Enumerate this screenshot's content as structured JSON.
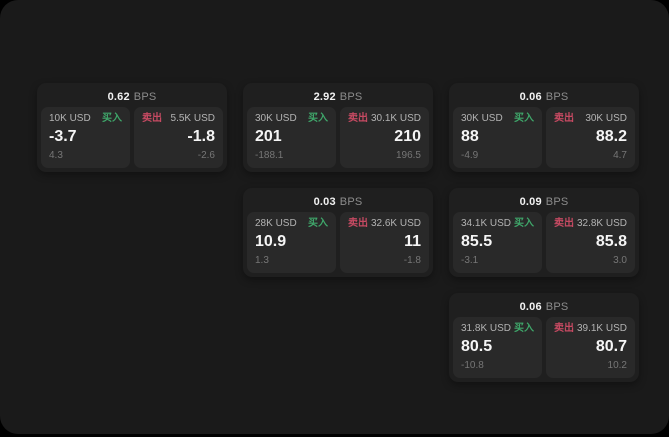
{
  "theme": {
    "outer_bg": "#000000",
    "page_bg": "#1a1a1a",
    "card_bg": "#1f1f1f",
    "tile_bg": "#292929",
    "buy_color": "#3fa66a",
    "sell_color": "#c64a62"
  },
  "labels": {
    "bps_unit": "BPS",
    "buy": "买入",
    "sell": "卖出"
  },
  "cards": [
    {
      "bps": "0.62",
      "buy": {
        "amount": "10K USD",
        "value": "-3.7",
        "sub": "4.3"
      },
      "sell": {
        "amount": "5.5K USD",
        "value": "-1.8",
        "sub": "-2.6"
      }
    },
    {
      "bps": "2.92",
      "buy": {
        "amount": "30K USD",
        "value": "201",
        "sub": "-188.1"
      },
      "sell": {
        "amount": "30.1K USD",
        "value": "210",
        "sub": "196.5"
      }
    },
    {
      "bps": "0.06",
      "buy": {
        "amount": "30K USD",
        "value": "88",
        "sub": "-4.9"
      },
      "sell": {
        "amount": "30K USD",
        "value": "88.2",
        "sub": "4.7"
      }
    },
    {
      "bps": "0.03",
      "buy": {
        "amount": "28K USD",
        "value": "10.9",
        "sub": "1.3"
      },
      "sell": {
        "amount": "32.6K USD",
        "value": "11",
        "sub": "-1.8"
      }
    },
    {
      "bps": "0.09",
      "buy": {
        "amount": "34.1K USD",
        "value": "85.5",
        "sub": "-3.1"
      },
      "sell": {
        "amount": "32.8K USD",
        "value": "85.8",
        "sub": "3.0"
      }
    },
    {
      "bps": "0.06",
      "buy": {
        "amount": "31.8K USD",
        "value": "80.5",
        "sub": "-10.8"
      },
      "sell": {
        "amount": "39.1K USD",
        "value": "80.7",
        "sub": "10.2"
      }
    }
  ]
}
